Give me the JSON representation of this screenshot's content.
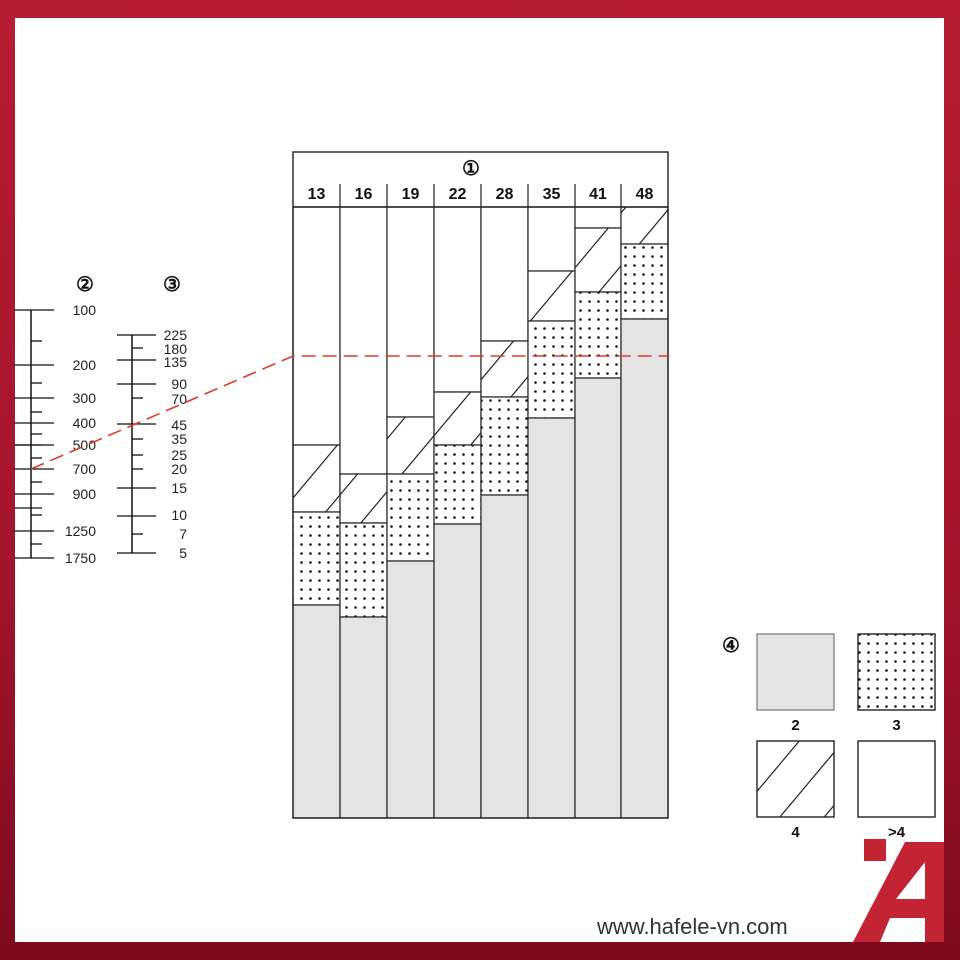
{
  "markers": {
    "columns": "①",
    "scale_left": "②",
    "scale_mid": "③",
    "legend": "④"
  },
  "columns": [
    "13",
    "16",
    "19",
    "22",
    "28",
    "35",
    "41",
    "48"
  ],
  "scale_left": {
    "labels": [
      "100",
      "200",
      "300",
      "400",
      "500",
      "700",
      "900",
      "1250",
      "1750"
    ]
  },
  "scale_mid": {
    "labels": [
      "225",
      "180",
      "135",
      "90",
      "70",
      "45",
      "35",
      "25",
      "20",
      "15",
      "10",
      "7",
      "5"
    ]
  },
  "legend": {
    "items": [
      {
        "fill": "gray",
        "label": "2"
      },
      {
        "fill": "dots",
        "label": "3"
      },
      {
        "fill": "hatch",
        "label": "4"
      },
      {
        "fill": "white",
        "label": ">4"
      }
    ]
  },
  "colors": {
    "gray": "#e4e4e4",
    "guide_line": "#e03a2a",
    "frame": "#b01a30",
    "logo": "#c32434"
  },
  "watermark": "www.hafele-vn.com"
}
